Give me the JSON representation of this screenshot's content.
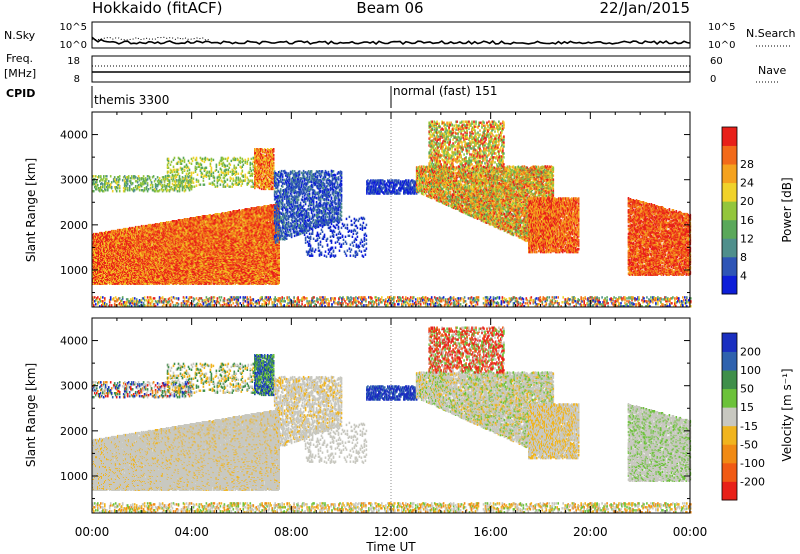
{
  "header": {
    "station": "Hokkaido (fitACF)",
    "beam": "Beam 06",
    "date": "22/Jan/2015"
  },
  "chart_data": {
    "type": "heatmap",
    "xlabel": "Time UT",
    "x_ticks": [
      "00:00",
      "04:00",
      "08:00",
      "12:00",
      "16:00",
      "20:00",
      "00:00"
    ],
    "x_range_hours": [
      0,
      24
    ],
    "ylabel": "Slant Range [km]",
    "y_range_km": [
      180,
      4500
    ],
    "y_ticks": [
      1000,
      2000,
      3000,
      4000
    ],
    "top_strips": {
      "nsky": {
        "label": "N.Sky",
        "left_ticks": [
          "10^5",
          "10^0"
        ],
        "right_ticks": [
          "10^5",
          "10^0"
        ],
        "right_label": "N.Search"
      },
      "freq": {
        "label": "Freq.",
        "unit": "[MHz]",
        "left_ticks": [
          "18",
          "8"
        ],
        "right_ticks": [
          "60",
          "0"
        ],
        "right_label": "Nave"
      },
      "cpid": {
        "label": "CPID",
        "modes": [
          {
            "name": "themis 3300",
            "start_hour": 0
          },
          {
            "name": "normal (fast) 151",
            "start_hour": 12
          }
        ]
      }
    },
    "power_panel": {
      "colorbar_label": "Power [dB]",
      "colorbar_ticks": [
        "4",
        "8",
        "12",
        "16",
        "20",
        "24",
        "28"
      ],
      "colors": [
        "#0d1ed8",
        "#2e55b6",
        "#4f8f8c",
        "#5aa85a",
        "#93c63c",
        "#f0d22a",
        "#f5a21e",
        "#f26a1a",
        "#e8201a"
      ]
    },
    "velocity_panel": {
      "colorbar_label": "Velocity [m s⁻¹]",
      "colorbar_ticks": [
        "200",
        "100",
        "50",
        "15",
        "-15",
        "-50",
        "-100",
        "-200"
      ],
      "colors": [
        "#1a2fc0",
        "#2f62ae",
        "#3f8f4a",
        "#6cc23a",
        "#c8c8c0",
        "#f0b41e",
        "#f08a14",
        "#f05a14",
        "#e82018"
      ]
    }
  }
}
